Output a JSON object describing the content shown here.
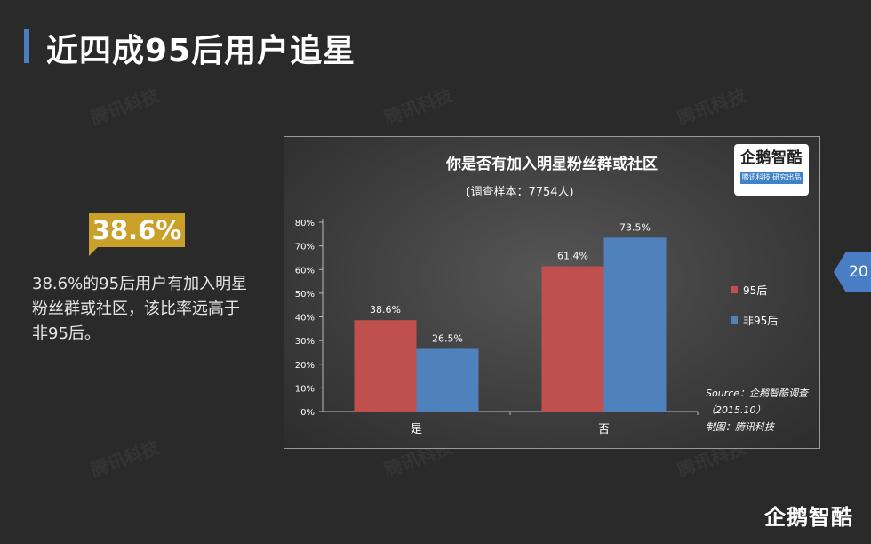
{
  "page": {
    "title": "近四成95后用户追星",
    "highlight_value": "38.6%",
    "description": "38.6%的95后用户有加入明星粉丝群或社区，该比率远高于非95后。",
    "page_number": "20",
    "brand": "企鹅智酷",
    "watermark": "腾讯科技",
    "accent_color": "#4a7ec4",
    "badge_color": "#c9a02a"
  },
  "logo": {
    "main": "企鹅智酷",
    "sub": "腾讯科技 研究出品"
  },
  "chart_data": {
    "type": "bar",
    "title": "你是否有加入明星粉丝群或社区",
    "subtitle": "(调查样本：7754人)",
    "categories": [
      "是",
      "否"
    ],
    "series": [
      {
        "name": "95后",
        "values": [
          38.6,
          61.4
        ],
        "labels": [
          "38.6%",
          "61.4%"
        ],
        "color": "#c0504d"
      },
      {
        "name": "非95后",
        "values": [
          26.5,
          73.5
        ],
        "labels": [
          "26.5%",
          "73.5%"
        ],
        "color": "#4f81bd"
      }
    ],
    "ylim": [
      0,
      80
    ],
    "yticks": [
      "0%",
      "10%",
      "20%",
      "30%",
      "40%",
      "50%",
      "60%",
      "70%",
      "80%"
    ],
    "legend_position": "right",
    "grid": false,
    "source_lines": [
      "Source：企鹅智酷调查",
      "（2015.10）",
      "制图：腾讯科技"
    ]
  }
}
